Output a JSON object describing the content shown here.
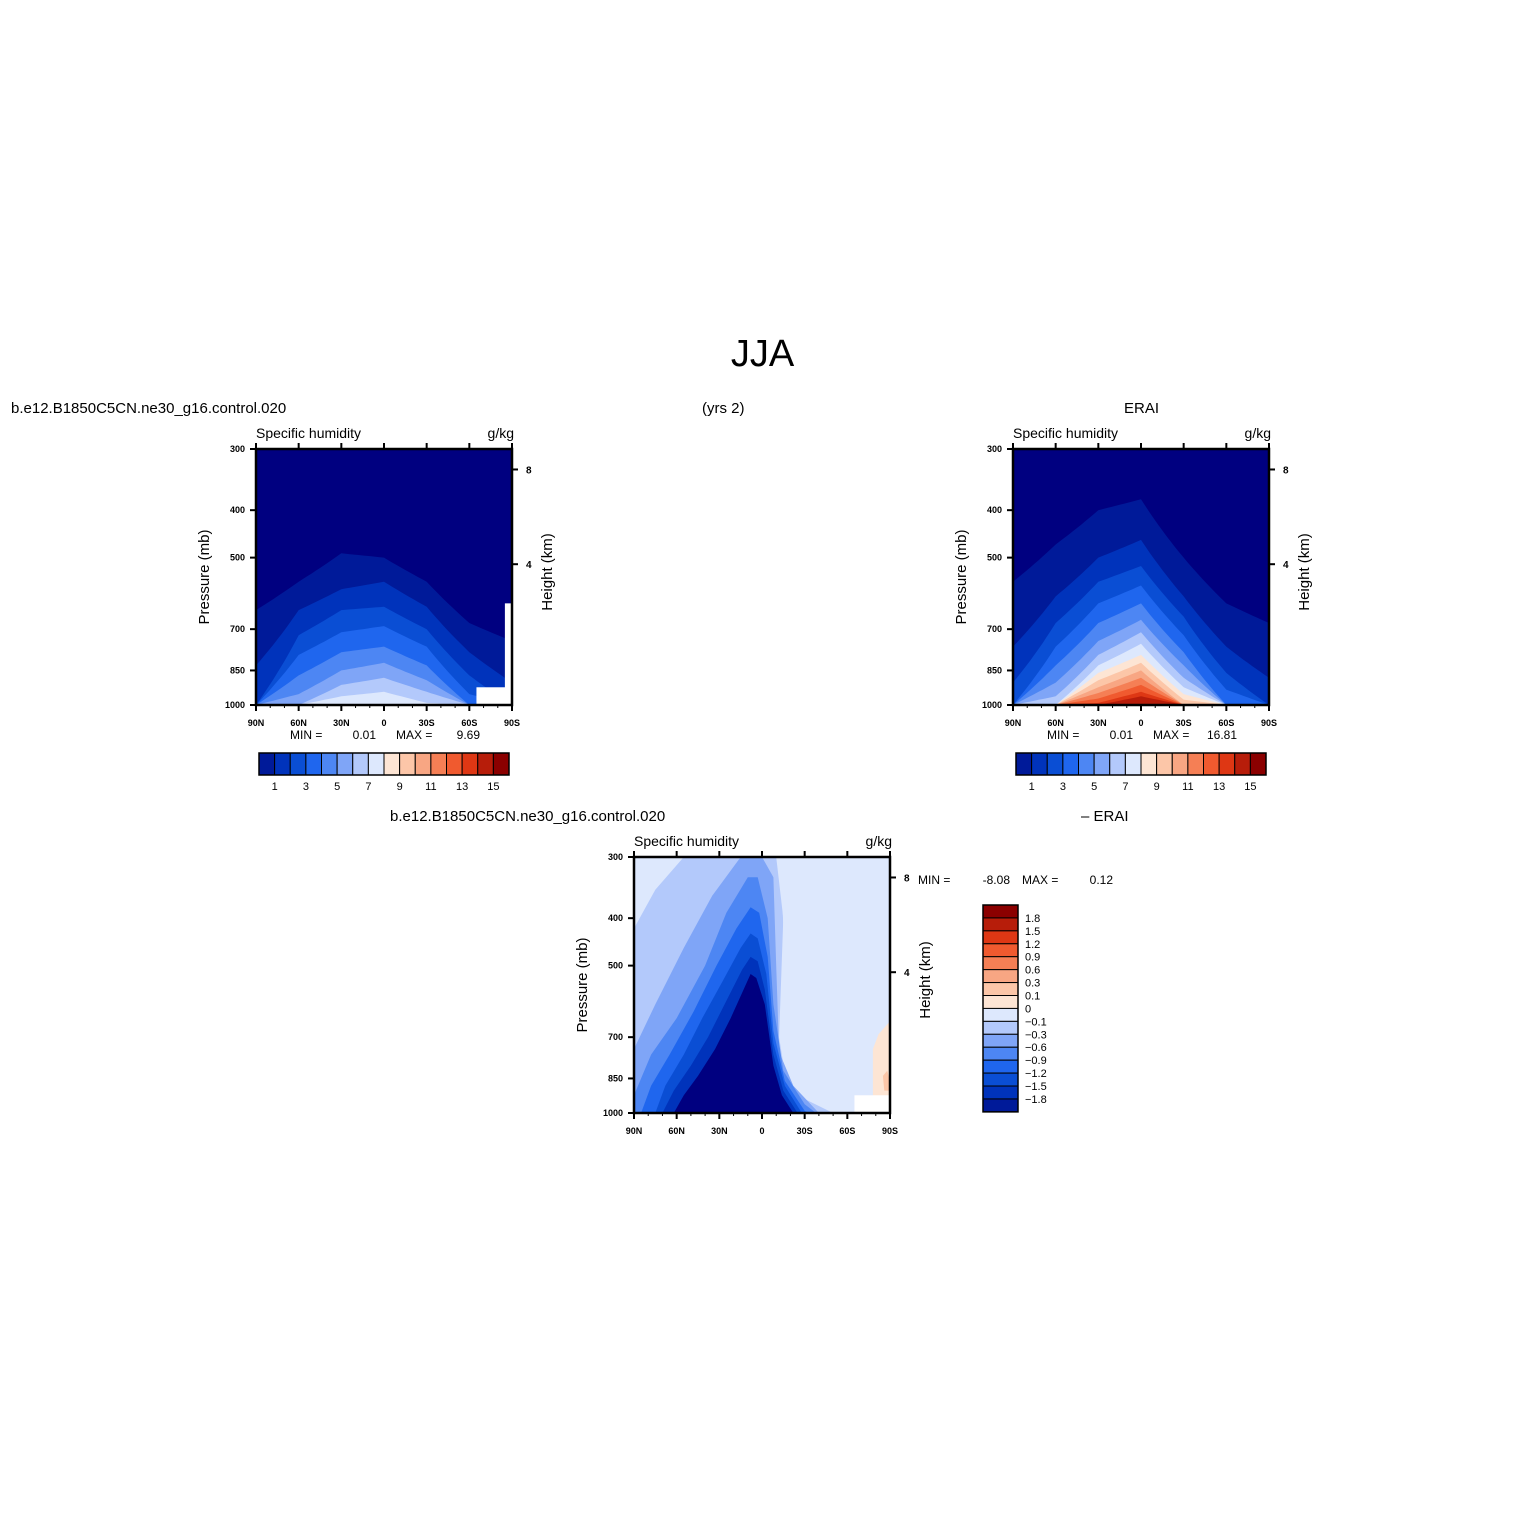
{
  "figure": {
    "season": "JJA",
    "case_name": "b.e12.B1850C5CN.ne30_g16.control.020",
    "years": "(yrs 2)",
    "obs_name": "ERAI",
    "diff_case_name": "b.e12.B1850C5CN.ne30_g16.control.020",
    "diff_obs_label": "– ERAI"
  },
  "colors": {
    "seq_scale": [
      "#000080",
      "#001a99",
      "#0033bb",
      "#0a4ed4",
      "#1f66ee",
      "#4d86f3",
      "#7fa5f7",
      "#b3c9fb",
      "#dde8fd",
      "#fde5d4",
      "#fcc6a8",
      "#f8a683",
      "#f57f55",
      "#f05a2f",
      "#de3714",
      "#b71d0a",
      "#8b0000"
    ],
    "diff_scale": [
      "#000080",
      "#001a99",
      "#0033bb",
      "#0a4ed4",
      "#1f66ee",
      "#4d86f3",
      "#7fa5f7",
      "#b3c9fb",
      "#dde8fd",
      "#fde5d4",
      "#fcc6a8",
      "#f8a683",
      "#f57f55",
      "#f05a2f",
      "#de3714",
      "#b71d0a",
      "#8b0000"
    ]
  },
  "chart_data": [
    {
      "type": "heatmap",
      "panel": "model",
      "title": "Specific humidity",
      "units": "g/kg",
      "xlabel": "",
      "ylabel": "Pressure (mb)",
      "y2label": "Height (km)",
      "x_ticks": [
        "90N",
        "60N",
        "30N",
        "0",
        "30S",
        "60S",
        "90S"
      ],
      "y_ticks": [
        "300",
        "400",
        "500",
        "700",
        "850",
        "1000"
      ],
      "y2_ticks": [
        "8",
        "4"
      ],
      "y_scale": "log",
      "ylim": [
        1000,
        300
      ],
      "min_label": "MIN =",
      "min_value": "0.01",
      "max_label": "MAX =",
      "max_value": "9.69",
      "colorbar_labels": [
        "1",
        "3",
        "5",
        "7",
        "9",
        "11",
        "13",
        "15"
      ],
      "levels": [
        1,
        2,
        3,
        4,
        5,
        6,
        7,
        8,
        9,
        10,
        11,
        12,
        13,
        14,
        15,
        16
      ],
      "surface_profile": [
        {
          "lat": -90,
          "p": 920
        },
        {
          "lat": -80,
          "p": 920
        },
        {
          "lat": -70,
          "p": 920
        },
        {
          "lat": -65,
          "p": 1000
        },
        {
          "lat": -30,
          "p": 1000
        },
        {
          "lat": 90,
          "p": 1000
        }
      ],
      "contour_tops": [
        {
          "value": 1,
          "lat": [
            90,
            60,
            30,
            0,
            -30,
            -60,
            -90
          ],
          "p": [
            300,
            300,
            300,
            300,
            300,
            300,
            300
          ]
        },
        {
          "value": 2,
          "lat": [
            90,
            60,
            30,
            0,
            -30,
            -60,
            -90
          ],
          "p": [
            640,
            560,
            490,
            500,
            560,
            680,
            740
          ]
        },
        {
          "value": 3,
          "lat": [
            90,
            60,
            30,
            0,
            -30,
            -60,
            -90
          ],
          "p": [
            830,
            640,
            580,
            560,
            630,
            780,
            900
          ]
        },
        {
          "value": 4,
          "lat": [
            90,
            60,
            30,
            0,
            -30,
            -60,
            -90
          ],
          "p": [
            1000,
            720,
            640,
            630,
            700,
            870,
            1000
          ]
        },
        {
          "value": 5,
          "lat": [
            90,
            60,
            30,
            0,
            -30,
            -60,
            -90
          ],
          "p": [
            1000,
            790,
            710,
            690,
            760,
            950,
            1000
          ]
        },
        {
          "value": 6,
          "lat": [
            90,
            60,
            30,
            0,
            -30,
            -60,
            -90
          ],
          "p": [
            1000,
            870,
            780,
            760,
            830,
            1000,
            1000
          ]
        },
        {
          "value": 7,
          "lat": [
            90,
            60,
            30,
            0,
            -30,
            -60,
            -90
          ],
          "p": [
            1000,
            950,
            850,
            820,
            890,
            1000,
            1000
          ]
        },
        {
          "value": 8,
          "lat": [
            90,
            60,
            30,
            0,
            -30,
            -60,
            -90
          ],
          "p": [
            1000,
            1000,
            910,
            880,
            940,
            1000,
            1000
          ]
        },
        {
          "value": 9,
          "lat": [
            90,
            60,
            30,
            0,
            -30,
            -60,
            -90
          ],
          "p": [
            1000,
            1000,
            960,
            940,
            990,
            1000,
            1000
          ]
        }
      ]
    },
    {
      "type": "heatmap",
      "panel": "obs",
      "title": "Specific humidity",
      "units": "g/kg",
      "xlabel": "",
      "ylabel": "Pressure (mb)",
      "y2label": "Height (km)",
      "x_ticks": [
        "90N",
        "60N",
        "30N",
        "0",
        "30S",
        "60S",
        "90S"
      ],
      "y_ticks": [
        "300",
        "400",
        "500",
        "700",
        "850",
        "1000"
      ],
      "y2_ticks": [
        "8",
        "4"
      ],
      "y_scale": "log",
      "ylim": [
        1000,
        300
      ],
      "min_label": "MIN =",
      "min_value": "0.01",
      "max_label": "MAX =",
      "max_value": "16.81",
      "colorbar_labels": [
        "1",
        "3",
        "5",
        "7",
        "9",
        "11",
        "13",
        "15"
      ],
      "levels": [
        1,
        2,
        3,
        4,
        5,
        6,
        7,
        8,
        9,
        10,
        11,
        12,
        13,
        14,
        15,
        16
      ],
      "contour_tops": [
        {
          "value": 1,
          "lat": [
            90,
            60,
            30,
            0,
            -30,
            -60,
            -90
          ],
          "p": [
            300,
            300,
            300,
            300,
            300,
            300,
            300
          ]
        },
        {
          "value": 2,
          "lat": [
            90,
            60,
            30,
            0,
            -30,
            -60,
            -90
          ],
          "p": [
            560,
            470,
            400,
            380,
            500,
            620,
            680
          ]
        },
        {
          "value": 3,
          "lat": [
            90,
            60,
            30,
            0,
            -30,
            -60,
            -90
          ],
          "p": [
            760,
            600,
            500,
            460,
            600,
            760,
            880
          ]
        },
        {
          "value": 4,
          "lat": [
            90,
            60,
            30,
            0,
            -30,
            -60,
            -90
          ],
          "p": [
            900,
            680,
            560,
            520,
            660,
            860,
            1000
          ]
        },
        {
          "value": 5,
          "lat": [
            90,
            60,
            30,
            0,
            -30,
            -60,
            -90
          ],
          "p": [
            1000,
            760,
            620,
            570,
            720,
            930,
            1000
          ]
        },
        {
          "value": 6,
          "lat": [
            90,
            60,
            30,
            0,
            -30,
            -60,
            -90
          ],
          "p": [
            1000,
            830,
            680,
            620,
            780,
            1000,
            1000
          ]
        },
        {
          "value": 7,
          "lat": [
            90,
            60,
            30,
            0,
            -30,
            -60,
            -90
          ],
          "p": [
            1000,
            900,
            740,
            670,
            830,
            1000,
            1000
          ]
        },
        {
          "value": 8,
          "lat": [
            90,
            60,
            30,
            0,
            -30,
            -60,
            -90
          ],
          "p": [
            1000,
            960,
            790,
            710,
            880,
            1000,
            1000
          ]
        },
        {
          "value": 9,
          "lat": [
            90,
            60,
            30,
            0,
            -30,
            -60,
            -90
          ],
          "p": [
            1000,
            1000,
            830,
            750,
            920,
            1000,
            1000
          ]
        },
        {
          "value": 10,
          "lat": [
            90,
            60,
            30,
            0,
            -30,
            -60,
            -90
          ],
          "p": [
            1000,
            1000,
            860,
            790,
            950,
            1000,
            1000
          ]
        },
        {
          "value": 11,
          "lat": [
            90,
            60,
            30,
            0,
            -30,
            -60,
            -90
          ],
          "p": [
            1000,
            1000,
            890,
            820,
            975,
            1000,
            1000
          ]
        },
        {
          "value": 12,
          "lat": [
            90,
            60,
            30,
            0,
            -30,
            -60,
            -90
          ],
          "p": [
            1000,
            1000,
            920,
            850,
            1000,
            1000,
            1000
          ]
        },
        {
          "value": 13,
          "lat": [
            90,
            60,
            30,
            0,
            -30,
            -60,
            -90
          ],
          "p": [
            1000,
            1000,
            945,
            880,
            1000,
            1000,
            1000
          ]
        },
        {
          "value": 14,
          "lat": [
            90,
            60,
            30,
            0,
            -30,
            -60,
            -90
          ],
          "p": [
            1000,
            1000,
            970,
            910,
            1000,
            1000,
            1000
          ]
        },
        {
          "value": 15,
          "lat": [
            90,
            60,
            30,
            0,
            -30,
            -60,
            -90
          ],
          "p": [
            1000,
            1000,
            990,
            940,
            1000,
            1000,
            1000
          ]
        },
        {
          "value": 16,
          "lat": [
            90,
            60,
            30,
            0,
            -30,
            -60,
            -90
          ],
          "p": [
            1000,
            1000,
            1000,
            960,
            1000,
            1000,
            1000
          ]
        }
      ]
    },
    {
      "type": "heatmap",
      "panel": "difference",
      "title": "Specific humidity",
      "units": "g/kg",
      "xlabel": "",
      "ylabel": "Pressure (mb)",
      "y2label": "Height (km)",
      "x_ticks": [
        "90N",
        "60N",
        "30N",
        "0",
        "30S",
        "60S",
        "90S"
      ],
      "y_ticks": [
        "300",
        "400",
        "500",
        "700",
        "850",
        "1000"
      ],
      "y2_ticks": [
        "8",
        "4"
      ],
      "y_scale": "log",
      "ylim": [
        1000,
        300
      ],
      "min_label": "MIN =",
      "min_value": "-8.08",
      "max_label": "MAX =",
      "max_value": "0.12",
      "colorbar_labels": [
        "1.8",
        "1.5",
        "1.2",
        "0.9",
        "0.6",
        "0.3",
        "0.1",
        "0",
        "-0.1",
        "-0.3",
        "-0.6",
        "-0.9",
        "-1.2",
        "-1.5",
        "-1.8"
      ],
      "levels": [
        -1.8,
        -1.5,
        -1.2,
        -0.9,
        -0.6,
        -0.3,
        -0.1,
        0,
        0.1,
        0.3,
        0.6,
        0.9,
        1.2,
        1.5,
        1.8
      ]
    }
  ]
}
